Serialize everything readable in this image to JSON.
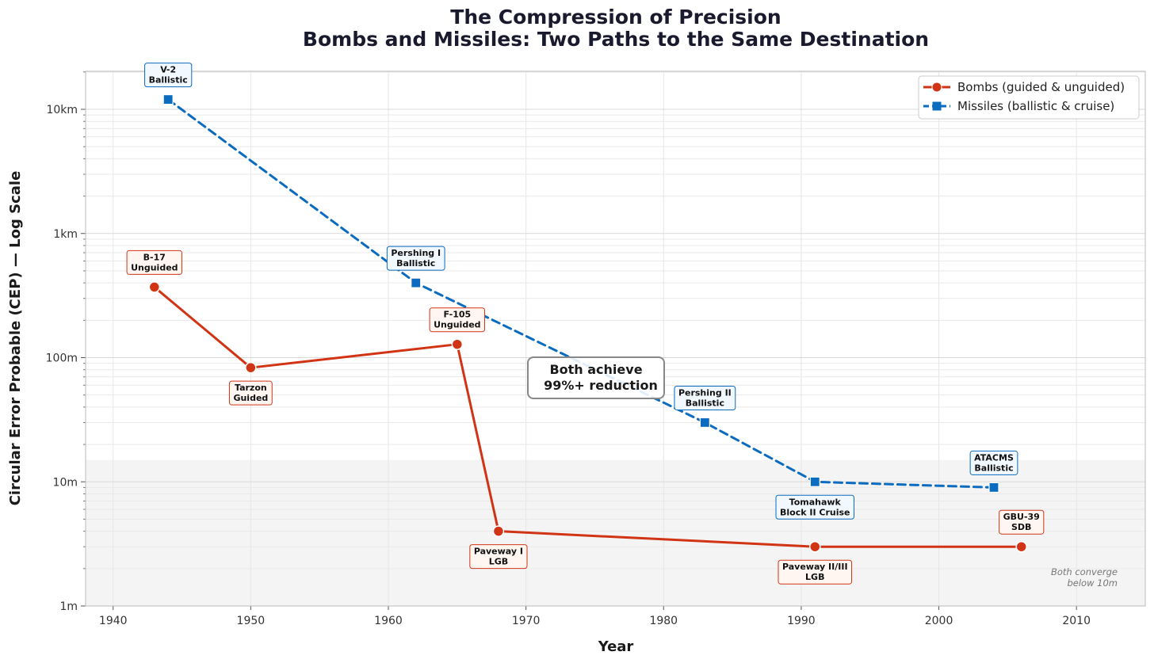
{
  "chart_data": {
    "type": "line",
    "title_lines": [
      "The Compression of Precision",
      "Bombs and Missiles: Two Paths to the Same Destination"
    ],
    "xlabel": "Year",
    "ylabel": "Circular Error Probable (CEP) — Log Scale",
    "xlim": [
      1938,
      2015
    ],
    "ylim": [
      1,
      20000
    ],
    "y_scale": "log",
    "grid": true,
    "x_ticks": [
      1940,
      1950,
      1960,
      1970,
      1980,
      1990,
      2000,
      2010
    ],
    "y_ticks": [
      {
        "value": 1,
        "label": "1m"
      },
      {
        "value": 10,
        "label": "10m"
      },
      {
        "value": 100,
        "label": "100m"
      },
      {
        "value": 1000,
        "label": "1km"
      },
      {
        "value": 10000,
        "label": "10km"
      }
    ],
    "shaded_band": {
      "from": 1,
      "to": 15,
      "color": "#f4f4f4"
    },
    "legend_position": "top-right",
    "series": [
      {
        "name": "Bombs (guided & unguided)",
        "color": "#d13414",
        "marker": "circle",
        "line_style": "solid",
        "points": [
          {
            "x": 1943,
            "y": 370,
            "label_lines": [
              "B-17",
              "Unguided"
            ],
            "label_side": "above"
          },
          {
            "x": 1950,
            "y": 83,
            "label_lines": [
              "Tarzon",
              "Guided"
            ],
            "label_side": "below"
          },
          {
            "x": 1965,
            "y": 128,
            "label_lines": [
              "F-105",
              "Unguided"
            ],
            "label_side": "above"
          },
          {
            "x": 1968,
            "y": 4,
            "label_lines": [
              "Paveway I",
              "LGB"
            ],
            "label_side": "below"
          },
          {
            "x": 1991,
            "y": 3,
            "label_lines": [
              "Paveway II/III",
              "LGB"
            ],
            "label_side": "below"
          },
          {
            "x": 2006,
            "y": 3,
            "label_lines": [
              "GBU-39",
              "SDB"
            ],
            "label_side": "above"
          }
        ]
      },
      {
        "name": "Missiles (ballistic & cruise)",
        "color": "#0a6bbf",
        "marker": "square",
        "line_style": "dashed",
        "points": [
          {
            "x": 1944,
            "y": 12000,
            "label_lines": [
              "V-2",
              "Ballistic"
            ],
            "label_side": "above"
          },
          {
            "x": 1962,
            "y": 400,
            "label_lines": [
              "Pershing I",
              "Ballistic"
            ],
            "label_side": "above"
          },
          {
            "x": 1983,
            "y": 30,
            "label_lines": [
              "Pershing II",
              "Ballistic"
            ],
            "label_side": "above"
          },
          {
            "x": 1991,
            "y": 10,
            "label_lines": [
              "Tomahawk",
              "Block II Cruise"
            ],
            "label_side": "below"
          },
          {
            "x": 2004,
            "y": 9,
            "label_lines": [
              "ATACMS",
              "Ballistic"
            ],
            "label_side": "above"
          }
        ]
      }
    ],
    "callout_lines": [
      "Both achieve",
      "99%+ reduction"
    ],
    "note_lines": [
      "Both converge",
      "below 10m"
    ]
  }
}
